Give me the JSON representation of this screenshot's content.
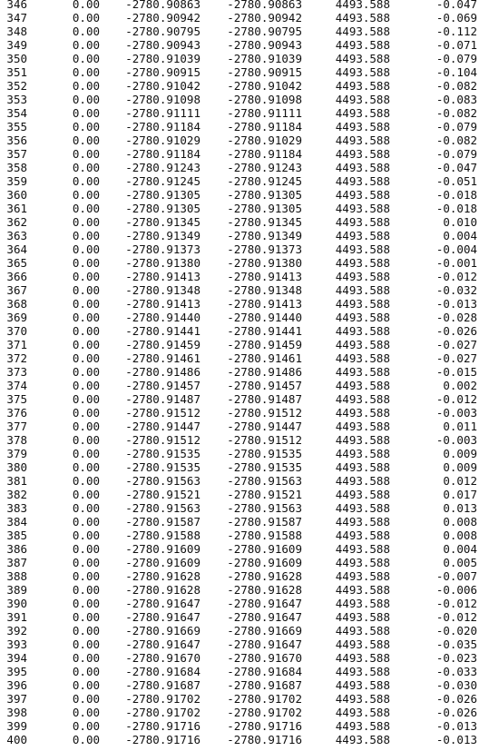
{
  "rows": [
    [
      "346",
      "0.00",
      "-2780.90863",
      "-2780.90863",
      "4493.588",
      "-0.047"
    ],
    [
      "347",
      "0.00",
      "-2780.90942",
      "-2780.90942",
      "4493.588",
      "-0.069"
    ],
    [
      "348",
      "0.00",
      "-2780.90795",
      "-2780.90795",
      "4493.588",
      "-0.112"
    ],
    [
      "349",
      "0.00",
      "-2780.90943",
      "-2780.90943",
      "4493.588",
      "-0.071"
    ],
    [
      "350",
      "0.00",
      "-2780.91039",
      "-2780.91039",
      "4493.588",
      "-0.079"
    ],
    [
      "351",
      "0.00",
      "-2780.90915",
      "-2780.90915",
      "4493.588",
      "-0.104"
    ],
    [
      "352",
      "0.00",
      "-2780.91042",
      "-2780.91042",
      "4493.588",
      "-0.082"
    ],
    [
      "353",
      "0.00",
      "-2780.91098",
      "-2780.91098",
      "4493.588",
      "-0.083"
    ],
    [
      "354",
      "0.00",
      "-2780.91111",
      "-2780.91111",
      "4493.588",
      "-0.082"
    ],
    [
      "355",
      "0.00",
      "-2780.91184",
      "-2780.91184",
      "4493.588",
      "-0.079"
    ],
    [
      "356",
      "0.00",
      "-2780.91029",
      "-2780.91029",
      "4493.588",
      "-0.082"
    ],
    [
      "357",
      "0.00",
      "-2780.91184",
      "-2780.91184",
      "4493.588",
      "-0.079"
    ],
    [
      "358",
      "0.00",
      "-2780.91243",
      "-2780.91243",
      "4493.588",
      "-0.047"
    ],
    [
      "359",
      "0.00",
      "-2780.91245",
      "-2780.91245",
      "4493.588",
      "-0.051"
    ],
    [
      "360",
      "0.00",
      "-2780.91305",
      "-2780.91305",
      "4493.588",
      "-0.018"
    ],
    [
      "361",
      "0.00",
      "-2780.91305",
      "-2780.91305",
      "4493.588",
      "-0.018"
    ],
    [
      "362",
      "0.00",
      "-2780.91345",
      "-2780.91345",
      "4493.588",
      "0.010"
    ],
    [
      "363",
      "0.00",
      "-2780.91349",
      "-2780.91349",
      "4493.588",
      "0.004"
    ],
    [
      "364",
      "0.00",
      "-2780.91373",
      "-2780.91373",
      "4493.588",
      "-0.004"
    ],
    [
      "365",
      "0.00",
      "-2780.91380",
      "-2780.91380",
      "4493.588",
      "-0.001"
    ],
    [
      "366",
      "0.00",
      "-2780.91413",
      "-2780.91413",
      "4493.588",
      "-0.012"
    ],
    [
      "367",
      "0.00",
      "-2780.91348",
      "-2780.91348",
      "4493.588",
      "-0.032"
    ],
    [
      "368",
      "0.00",
      "-2780.91413",
      "-2780.91413",
      "4493.588",
      "-0.013"
    ],
    [
      "369",
      "0.00",
      "-2780.91440",
      "-2780.91440",
      "4493.588",
      "-0.028"
    ],
    [
      "370",
      "0.00",
      "-2780.91441",
      "-2780.91441",
      "4493.588",
      "-0.026"
    ],
    [
      "371",
      "0.00",
      "-2780.91459",
      "-2780.91459",
      "4493.588",
      "-0.027"
    ],
    [
      "372",
      "0.00",
      "-2780.91461",
      "-2780.91461",
      "4493.588",
      "-0.027"
    ],
    [
      "373",
      "0.00",
      "-2780.91486",
      "-2780.91486",
      "4493.588",
      "-0.015"
    ],
    [
      "374",
      "0.00",
      "-2780.91457",
      "-2780.91457",
      "4493.588",
      "0.002"
    ],
    [
      "375",
      "0.00",
      "-2780.91487",
      "-2780.91487",
      "4493.588",
      "-0.012"
    ],
    [
      "376",
      "0.00",
      "-2780.91512",
      "-2780.91512",
      "4493.588",
      "-0.003"
    ],
    [
      "377",
      "0.00",
      "-2780.91447",
      "-2780.91447",
      "4493.588",
      "0.011"
    ],
    [
      "378",
      "0.00",
      "-2780.91512",
      "-2780.91512",
      "4493.588",
      "-0.003"
    ],
    [
      "379",
      "0.00",
      "-2780.91535",
      "-2780.91535",
      "4493.588",
      "0.009"
    ],
    [
      "380",
      "0.00",
      "-2780.91535",
      "-2780.91535",
      "4493.588",
      "0.009"
    ],
    [
      "381",
      "0.00",
      "-2780.91563",
      "-2780.91563",
      "4493.588",
      "0.012"
    ],
    [
      "382",
      "0.00",
      "-2780.91521",
      "-2780.91521",
      "4493.588",
      "0.017"
    ],
    [
      "383",
      "0.00",
      "-2780.91563",
      "-2780.91563",
      "4493.588",
      "0.013"
    ],
    [
      "384",
      "0.00",
      "-2780.91587",
      "-2780.91587",
      "4493.588",
      "0.008"
    ],
    [
      "385",
      "0.00",
      "-2780.91588",
      "-2780.91588",
      "4493.588",
      "0.008"
    ],
    [
      "386",
      "0.00",
      "-2780.91609",
      "-2780.91609",
      "4493.588",
      "0.004"
    ],
    [
      "387",
      "0.00",
      "-2780.91609",
      "-2780.91609",
      "4493.588",
      "0.005"
    ],
    [
      "388",
      "0.00",
      "-2780.91628",
      "-2780.91628",
      "4493.588",
      "-0.007"
    ],
    [
      "389",
      "0.00",
      "-2780.91628",
      "-2780.91628",
      "4493.588",
      "-0.006"
    ],
    [
      "390",
      "0.00",
      "-2780.91647",
      "-2780.91647",
      "4493.588",
      "-0.012"
    ],
    [
      "391",
      "0.00",
      "-2780.91647",
      "-2780.91647",
      "4493.588",
      "-0.012"
    ],
    [
      "392",
      "0.00",
      "-2780.91669",
      "-2780.91669",
      "4493.588",
      "-0.020"
    ],
    [
      "393",
      "0.00",
      "-2780.91647",
      "-2780.91647",
      "4493.588",
      "-0.035"
    ],
    [
      "394",
      "0.00",
      "-2780.91670",
      "-2780.91670",
      "4493.588",
      "-0.023"
    ],
    [
      "395",
      "0.00",
      "-2780.91684",
      "-2780.91684",
      "4493.588",
      "-0.033"
    ],
    [
      "396",
      "0.00",
      "-2780.91687",
      "-2780.91687",
      "4493.588",
      "-0.030"
    ],
    [
      "397",
      "0.00",
      "-2780.91702",
      "-2780.91702",
      "4493.588",
      "-0.026"
    ],
    [
      "398",
      "0.00",
      "-2780.91702",
      "-2780.91702",
      "4493.588",
      "-0.026"
    ],
    [
      "399",
      "0.00",
      "-2780.91716",
      "-2780.91716",
      "4493.588",
      "-0.013"
    ],
    [
      "400",
      "0.00",
      "-2780.91716",
      "-2780.91716",
      "4493.588",
      "-0.013"
    ]
  ]
}
